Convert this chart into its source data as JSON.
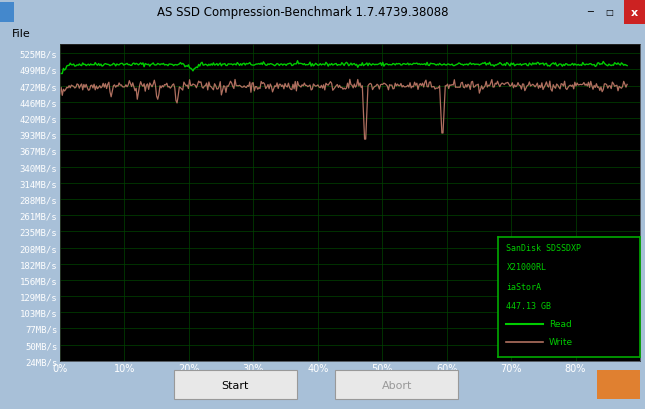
{
  "title": "AS SSD Compression-Benchmark 1.7.4739.38088",
  "plot_bg_color": "#000000",
  "grid_color": "#004400",
  "read_color": "#00cc00",
  "write_color": "#b07060",
  "ytick_labels": [
    "525MB/s",
    "499MB/s",
    "472MB/s",
    "446MB/s",
    "420MB/s",
    "393MB/s",
    "367MB/s",
    "340MB/s",
    "314MB/s",
    "288MB/s",
    "261MB/s",
    "235MB/s",
    "208MB/s",
    "182MB/s",
    "156MB/s",
    "129MB/s",
    "103MB/s",
    "77MB/s",
    "50MB/s",
    "24MB/s"
  ],
  "ytick_values": [
    525,
    499,
    472,
    446,
    420,
    393,
    367,
    340,
    314,
    288,
    261,
    235,
    208,
    182,
    156,
    129,
    103,
    77,
    50,
    24
  ],
  "xtick_labels": [
    "0%",
    "10%",
    "20%",
    "30%",
    "40%",
    "50%",
    "60%",
    "70%",
    "80%"
  ],
  "xtick_values": [
    0,
    10,
    20,
    30,
    40,
    50,
    60,
    70,
    80
  ],
  "xlim": [
    0,
    90
  ],
  "ylim": [
    24,
    540
  ],
  "legend_text": [
    "SanDisk SDSSDXP",
    "X21000RL",
    "iaStorA",
    "447.13 GB"
  ],
  "legend_read_label": "Read",
  "legend_write_label": "Write",
  "window_bg": "#a8c0d8",
  "title_bg": "#b8cce0",
  "menu_bg": "#f0f0f0",
  "bottom_bg": "#c8d8e0",
  "figsize": [
    6.45,
    4.1
  ],
  "dpi": 100
}
